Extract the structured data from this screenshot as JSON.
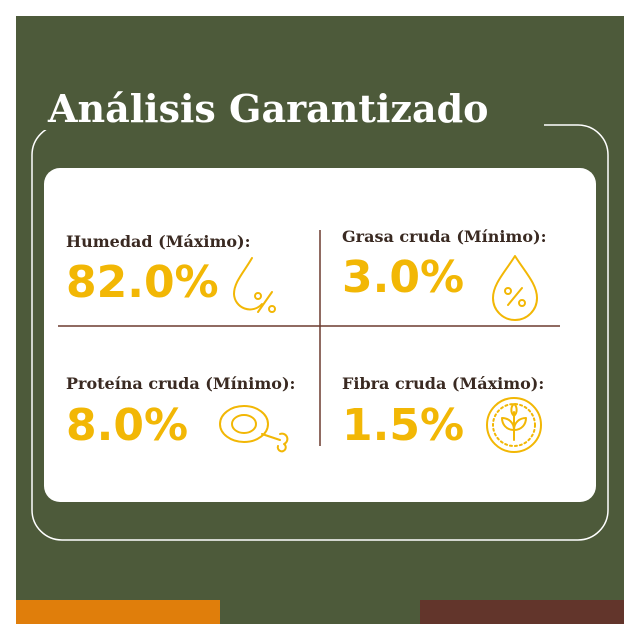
{
  "header": {
    "title": "Análisis Garantizado"
  },
  "items": [
    {
      "label": "Humedad (Máximo):",
      "value": "82.0%"
    },
    {
      "label": "Grasa cruda (Mínimo):",
      "value": "3.0%"
    },
    {
      "label": "Proteína cruda (Mínimo):",
      "value": "8.0%"
    },
    {
      "label": "Fibra cruda (Máximo):",
      "value": "1.5%"
    }
  ]
}
